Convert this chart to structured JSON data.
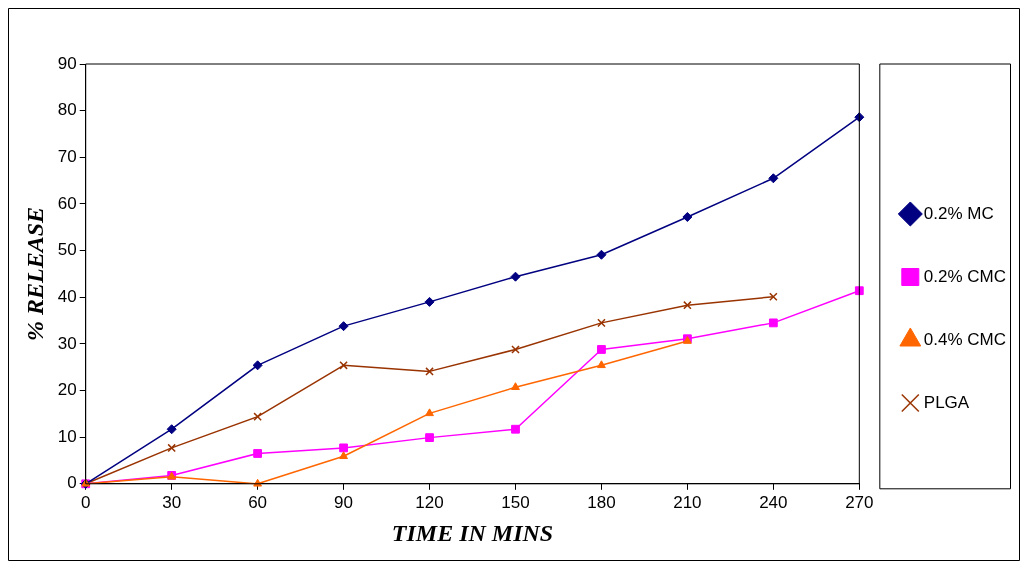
{
  "chart_data": {
    "type": "line",
    "xlabel": "TIME IN MINS",
    "ylabel": "% RELEASE",
    "x": [
      0,
      30,
      60,
      90,
      120,
      150,
      180,
      210,
      240,
      270
    ],
    "series": [
      {
        "name": "0.2% MC",
        "color": "#000080",
        "marker": "diamond",
        "values": [
          0,
          11.7,
          25.4,
          33.8,
          39,
          44.4,
          49.1,
          57.2,
          65.5,
          78.6
        ]
      },
      {
        "name": "0.2% CMC",
        "color": "#ff00ff",
        "marker": "square",
        "values": [
          0,
          1.8,
          6.5,
          7.7,
          9.9,
          11.7,
          28.8,
          31.1,
          34.5,
          41.4
        ]
      },
      {
        "name": "0.4% CMC",
        "color": "#ff6600",
        "marker": "triangle",
        "values": [
          0,
          1.5,
          0,
          5.9,
          15.1,
          20.7,
          25.4,
          30.6,
          null,
          null
        ]
      },
      {
        "name": "PLGA",
        "color": "#993300",
        "marker": "cross",
        "values": [
          0,
          7.7,
          14.4,
          25.4,
          24.1,
          28.8,
          34.5,
          38.3,
          40.1,
          null
        ]
      }
    ],
    "xlim": [
      0,
      270
    ],
    "xticks": [
      0,
      30,
      60,
      90,
      120,
      150,
      180,
      210,
      240,
      270
    ],
    "ylim": [
      0,
      90
    ],
    "yticks": [
      0,
      10,
      20,
      30,
      40,
      50,
      60,
      70,
      80,
      90
    ],
    "grid": false,
    "legend": "right"
  }
}
